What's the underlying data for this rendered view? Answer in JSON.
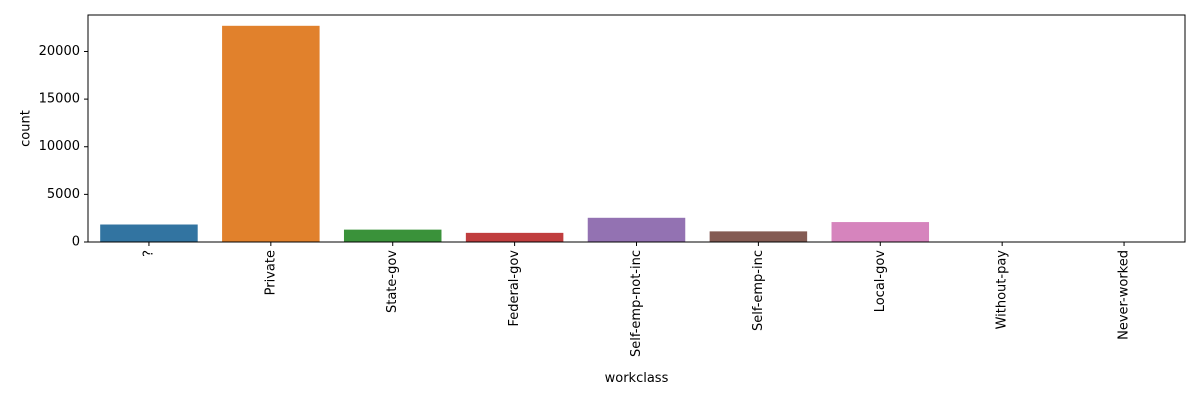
{
  "chart_data": {
    "type": "bar",
    "xlabel": "workclass",
    "ylabel": "count",
    "categories": [
      "?",
      "Private",
      "State-gov",
      "Federal-gov",
      "Self-emp-not-inc",
      "Self-emp-inc",
      "Local-gov",
      "Without-pay",
      "Never-worked"
    ],
    "values": [
      1836,
      22696,
      1298,
      960,
      2541,
      1116,
      2093,
      14,
      7
    ],
    "colors": [
      "#3274a1",
      "#e1812c",
      "#3a923a",
      "#c03d3e",
      "#9372b2",
      "#845b53",
      "#d684bd",
      "#7f7f7f",
      "#a9aa35"
    ],
    "ylim": [
      0,
      23830
    ],
    "yticks": [
      0,
      5000,
      10000,
      15000,
      20000
    ],
    "ytick_labels": [
      "0",
      "5000",
      "10000",
      "15000",
      "20000"
    ],
    "grid": false
  }
}
